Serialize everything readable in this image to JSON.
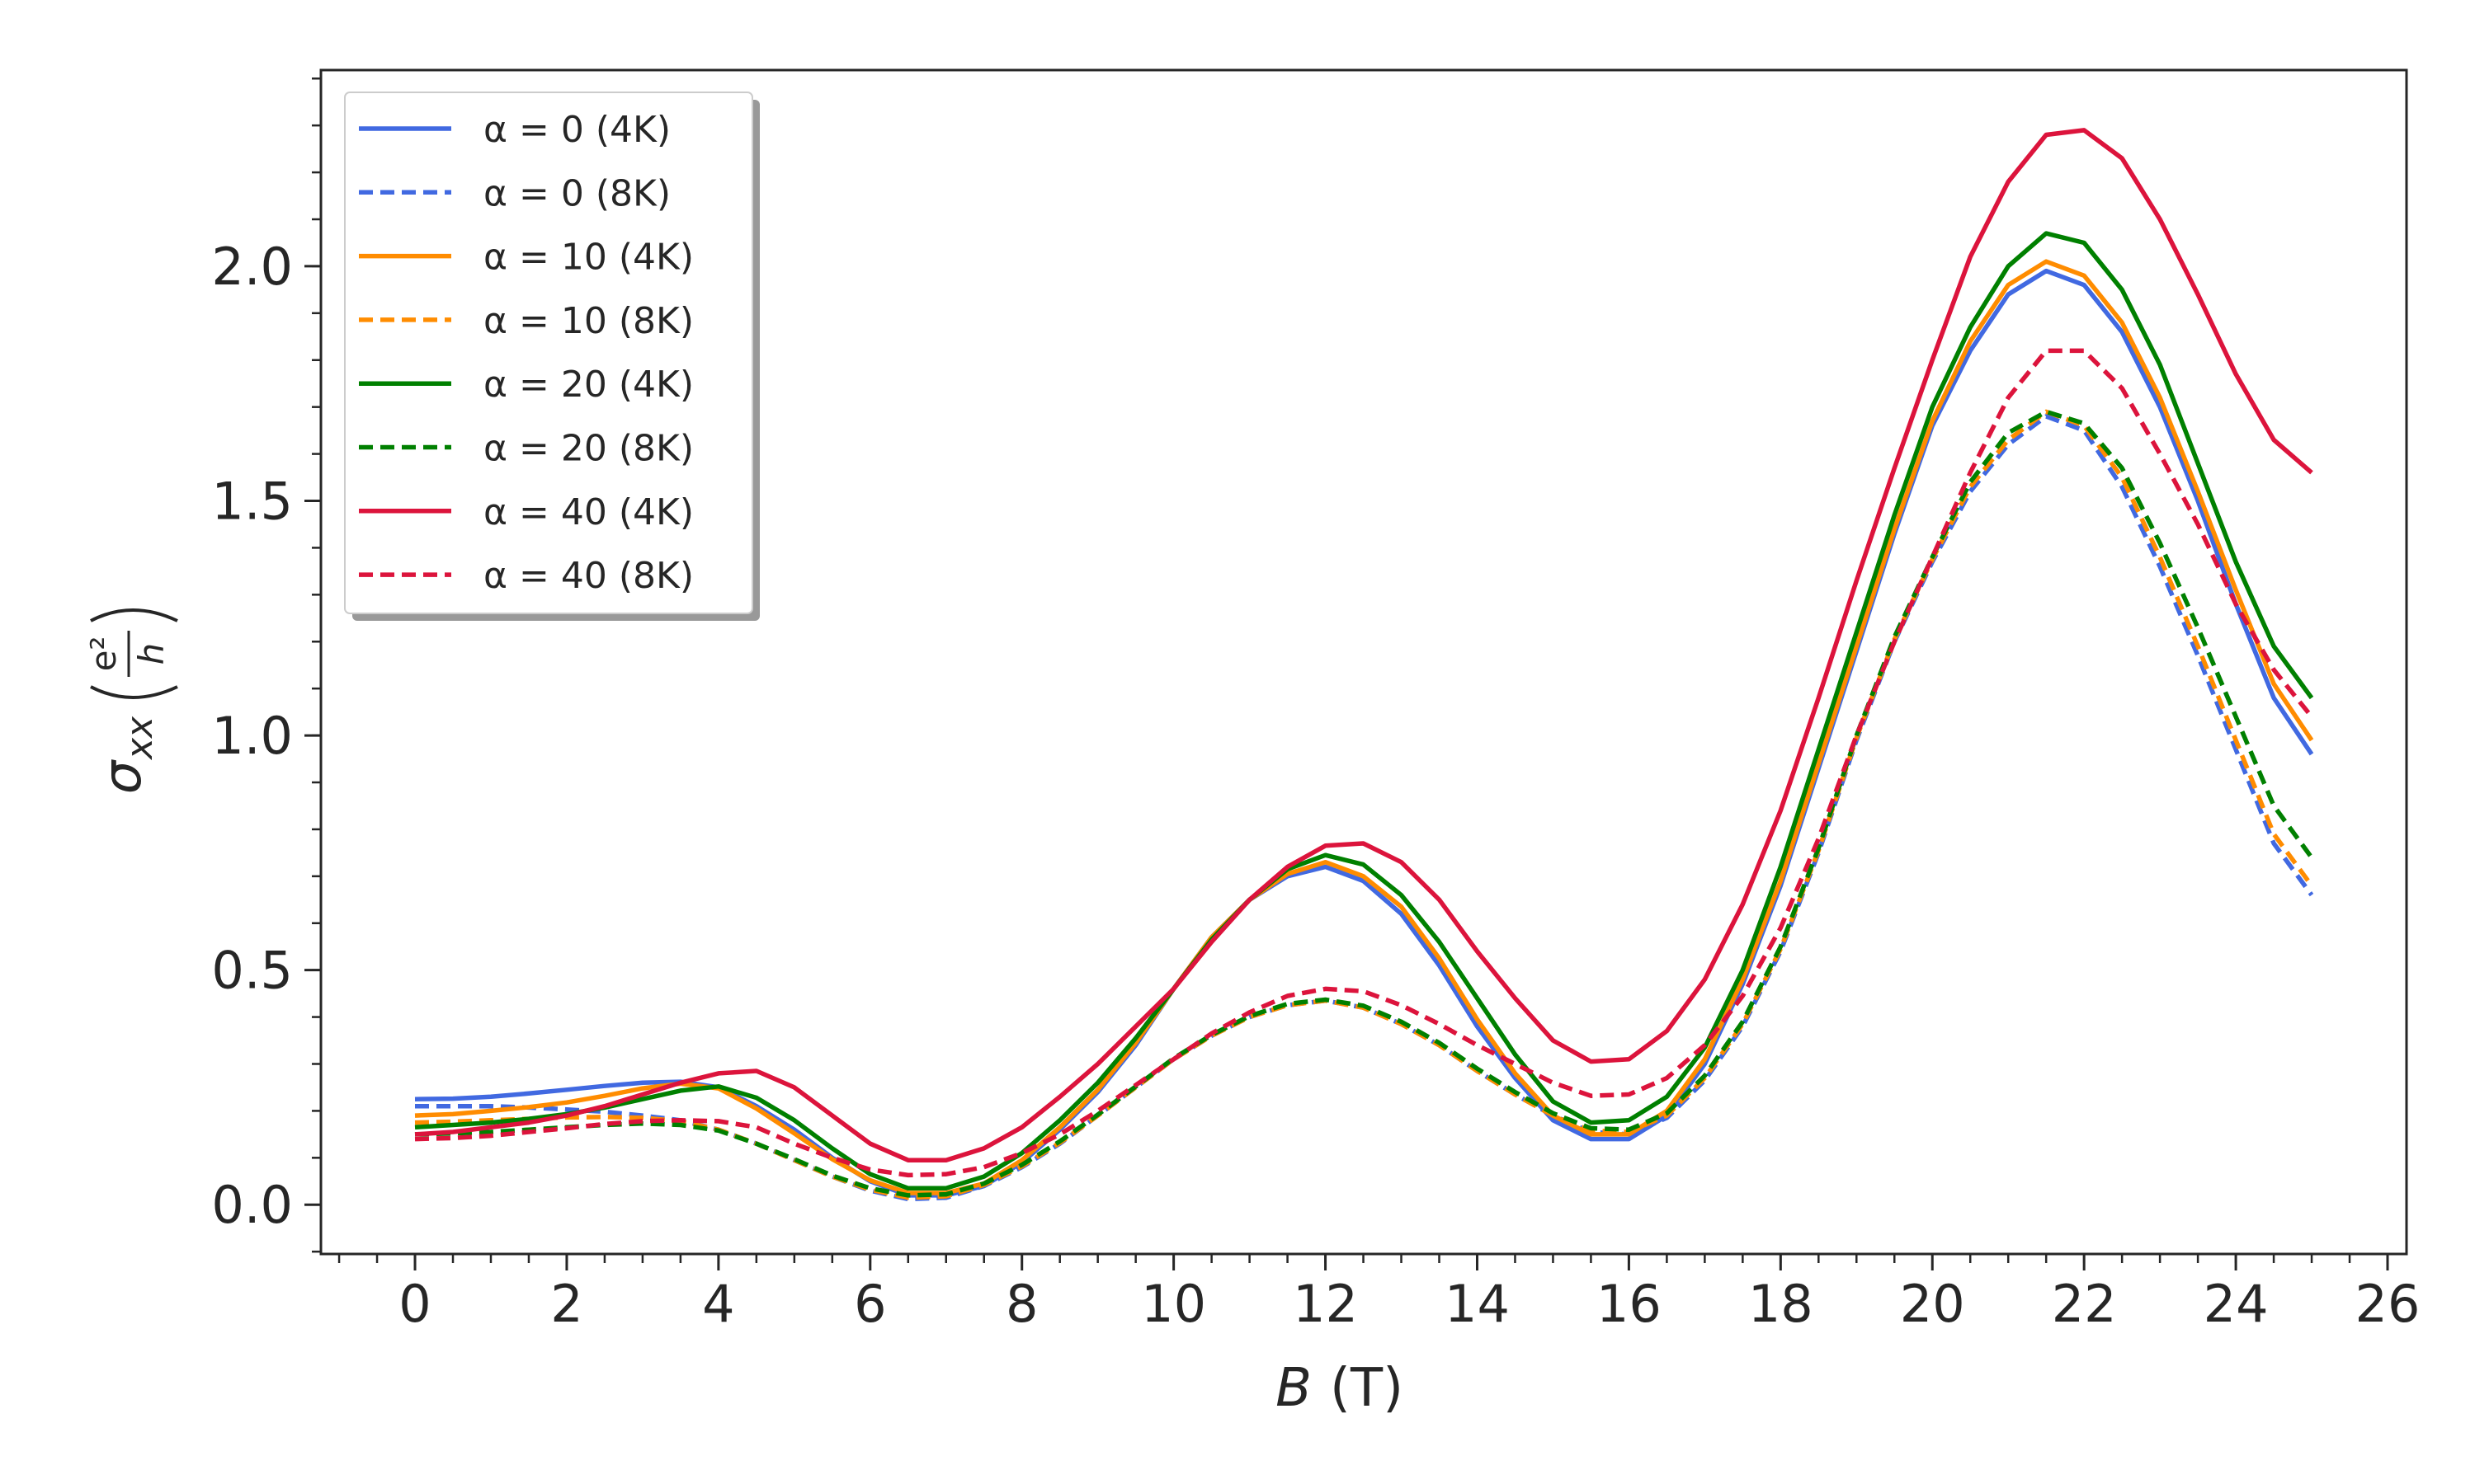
{
  "chart_data": {
    "type": "line",
    "xlabel": "B",
    "xlabel_unit": "(T)",
    "ylabel_symbol": "σ",
    "ylabel_subscript": "xx",
    "ylabel_numerator": "e²",
    "ylabel_denominator": "h",
    "xlim": [
      -1.24,
      26.25
    ],
    "ylim": [
      -0.105,
      2.418
    ],
    "xticks": [
      0,
      2,
      4,
      6,
      8,
      10,
      12,
      14,
      16,
      18,
      20,
      22,
      24,
      26
    ],
    "yticks": [
      {
        "value": 0,
        "label": "0.0"
      },
      0.5,
      {
        "value": 1,
        "label": "1.0"
      },
      1.5,
      {
        "value": 2,
        "label": "2.0"
      }
    ],
    "xminorticks": [
      -1,
      -0.5,
      0,
      0.5,
      1,
      1.5,
      2,
      2.5,
      3,
      3.5,
      4,
      4.5,
      5,
      5.5,
      6,
      6.5,
      7,
      7.5,
      8,
      8.5,
      9,
      9.5,
      10,
      10.5,
      11,
      11.5,
      12,
      12.5,
      13,
      13.5,
      14,
      14.5,
      15,
      15.5,
      16,
      16.5,
      17,
      17.5,
      18,
      18.5,
      19,
      19.5,
      20,
      20.5,
      21,
      21.5,
      22,
      22.5,
      23,
      23.5,
      24,
      24.5,
      25,
      25.5,
      26
    ],
    "yminorticks": [
      -0.1,
      0,
      0.1,
      0.2,
      0.3,
      0.4,
      0.5,
      0.6,
      0.7,
      0.8,
      0.9,
      1,
      1.1,
      1.2,
      1.3,
      1.4,
      1.5,
      1.6,
      1.7,
      1.8,
      1.9,
      2,
      2.1,
      2.2,
      2.3,
      2.4
    ],
    "legend": "upper left",
    "x": [
      0,
      0.5,
      1,
      1.5,
      2,
      2.5,
      3,
      3.5,
      4,
      4.5,
      5,
      5.5,
      6,
      6.5,
      7,
      7.5,
      8,
      8.5,
      9,
      9.5,
      10,
      10.5,
      11,
      11.5,
      12,
      12.5,
      13,
      13.5,
      14,
      14.5,
      15,
      15.5,
      16,
      16.5,
      17,
      17.5,
      18,
      18.5,
      19,
      19.5,
      20,
      20.5,
      21,
      21.5,
      22,
      22.5,
      23,
      23.5,
      24,
      24.5,
      25
    ],
    "series": [
      {
        "name": "α = 0 (4K)",
        "color": "#4169e1",
        "linestyle": "solid",
        "values": [
          0.225,
          0.226,
          0.23,
          0.237,
          0.245,
          0.253,
          0.26,
          0.262,
          0.25,
          0.21,
          0.16,
          0.1,
          0.05,
          0.02,
          0.02,
          0.04,
          0.09,
          0.16,
          0.24,
          0.34,
          0.46,
          0.57,
          0.65,
          0.7,
          0.72,
          0.69,
          0.62,
          0.51,
          0.38,
          0.27,
          0.18,
          0.14,
          0.14,
          0.19,
          0.3,
          0.47,
          0.68,
          0.93,
          1.18,
          1.43,
          1.66,
          1.82,
          1.94,
          1.99,
          1.96,
          1.86,
          1.7,
          1.5,
          1.28,
          1.08,
          0.96
        ]
      },
      {
        "name": "α = 0 (8K)",
        "color": "#4169e1",
        "linestyle": "dashed",
        "values": [
          0.21,
          0.21,
          0.21,
          0.207,
          0.203,
          0.198,
          0.19,
          0.18,
          0.16,
          0.13,
          0.095,
          0.06,
          0.03,
          0.012,
          0.015,
          0.04,
          0.08,
          0.13,
          0.19,
          0.25,
          0.31,
          0.36,
          0.4,
          0.425,
          0.435,
          0.42,
          0.385,
          0.34,
          0.285,
          0.235,
          0.19,
          0.155,
          0.15,
          0.185,
          0.265,
          0.38,
          0.54,
          0.75,
          0.99,
          1.2,
          1.37,
          1.52,
          1.62,
          1.68,
          1.65,
          1.53,
          1.36,
          1.17,
          0.97,
          0.77,
          0.66
        ]
      },
      {
        "name": "α = 10 (4K)",
        "color": "#ff8c00",
        "linestyle": "solid",
        "values": [
          0.19,
          0.193,
          0.2,
          0.208,
          0.218,
          0.232,
          0.248,
          0.258,
          0.248,
          0.205,
          0.152,
          0.097,
          0.052,
          0.025,
          0.025,
          0.045,
          0.095,
          0.165,
          0.245,
          0.345,
          0.46,
          0.57,
          0.65,
          0.705,
          0.73,
          0.7,
          0.635,
          0.525,
          0.395,
          0.28,
          0.19,
          0.15,
          0.15,
          0.2,
          0.31,
          0.48,
          0.69,
          0.94,
          1.19,
          1.44,
          1.67,
          1.84,
          1.96,
          2.01,
          1.98,
          1.88,
          1.72,
          1.52,
          1.31,
          1.11,
          0.99
        ]
      },
      {
        "name": "α = 10 (8K)",
        "color": "#ff8c00",
        "linestyle": "dashed",
        "values": [
          0.175,
          0.177,
          0.18,
          0.183,
          0.186,
          0.187,
          0.185,
          0.178,
          0.16,
          0.13,
          0.095,
          0.06,
          0.032,
          0.015,
          0.018,
          0.042,
          0.082,
          0.132,
          0.19,
          0.25,
          0.31,
          0.36,
          0.4,
          0.425,
          0.435,
          0.42,
          0.385,
          0.34,
          0.285,
          0.235,
          0.19,
          0.158,
          0.155,
          0.19,
          0.27,
          0.385,
          0.545,
          0.755,
          0.995,
          1.205,
          1.375,
          1.53,
          1.63,
          1.69,
          1.66,
          1.55,
          1.38,
          1.19,
          0.99,
          0.79,
          0.68
        ]
      },
      {
        "name": "α = 20 (4K)",
        "color": "#008000",
        "linestyle": "solid",
        "values": [
          0.165,
          0.17,
          0.175,
          0.183,
          0.193,
          0.207,
          0.225,
          0.243,
          0.252,
          0.228,
          0.18,
          0.12,
          0.065,
          0.035,
          0.035,
          0.06,
          0.11,
          0.18,
          0.26,
          0.355,
          0.46,
          0.565,
          0.65,
          0.715,
          0.745,
          0.725,
          0.66,
          0.56,
          0.44,
          0.32,
          0.22,
          0.175,
          0.18,
          0.23,
          0.335,
          0.5,
          0.72,
          0.97,
          1.22,
          1.47,
          1.7,
          1.87,
          2.0,
          2.07,
          2.05,
          1.95,
          1.79,
          1.58,
          1.37,
          1.19,
          1.08
        ]
      },
      {
        "name": "α = 20 (8K)",
        "color": "#008000",
        "linestyle": "dashed",
        "values": [
          0.15,
          0.152,
          0.155,
          0.16,
          0.165,
          0.17,
          0.173,
          0.17,
          0.158,
          0.13,
          0.097,
          0.062,
          0.035,
          0.02,
          0.022,
          0.045,
          0.085,
          0.135,
          0.192,
          0.252,
          0.312,
          0.362,
          0.402,
          0.428,
          0.437,
          0.424,
          0.39,
          0.345,
          0.29,
          0.24,
          0.195,
          0.163,
          0.16,
          0.195,
          0.275,
          0.39,
          0.55,
          0.76,
          1.0,
          1.21,
          1.38,
          1.54,
          1.645,
          1.69,
          1.665,
          1.57,
          1.41,
          1.23,
          1.04,
          0.85,
          0.74
        ]
      },
      {
        "name": "α = 40 (4K)",
        "color": "#dc143c",
        "linestyle": "solid",
        "values": [
          0.15,
          0.155,
          0.165,
          0.175,
          0.19,
          0.21,
          0.235,
          0.26,
          0.28,
          0.285,
          0.25,
          0.19,
          0.13,
          0.095,
          0.095,
          0.12,
          0.165,
          0.23,
          0.3,
          0.38,
          0.46,
          0.56,
          0.65,
          0.72,
          0.765,
          0.77,
          0.73,
          0.65,
          0.54,
          0.44,
          0.35,
          0.305,
          0.31,
          0.37,
          0.48,
          0.64,
          0.84,
          1.08,
          1.33,
          1.57,
          1.8,
          2.02,
          2.18,
          2.28,
          2.29,
          2.23,
          2.1,
          1.94,
          1.77,
          1.63,
          1.56
        ]
      },
      {
        "name": "α = 40 (8K)",
        "color": "#dc143c",
        "linestyle": "dashed",
        "values": [
          0.14,
          0.142,
          0.147,
          0.155,
          0.163,
          0.172,
          0.178,
          0.18,
          0.178,
          0.165,
          0.13,
          0.1,
          0.075,
          0.063,
          0.065,
          0.08,
          0.11,
          0.15,
          0.2,
          0.255,
          0.31,
          0.365,
          0.41,
          0.445,
          0.46,
          0.455,
          0.425,
          0.385,
          0.34,
          0.3,
          0.26,
          0.232,
          0.235,
          0.27,
          0.34,
          0.445,
          0.59,
          0.78,
          1.0,
          1.2,
          1.38,
          1.56,
          1.72,
          1.82,
          1.82,
          1.74,
          1.6,
          1.45,
          1.28,
          1.14,
          1.04
        ]
      }
    ]
  }
}
